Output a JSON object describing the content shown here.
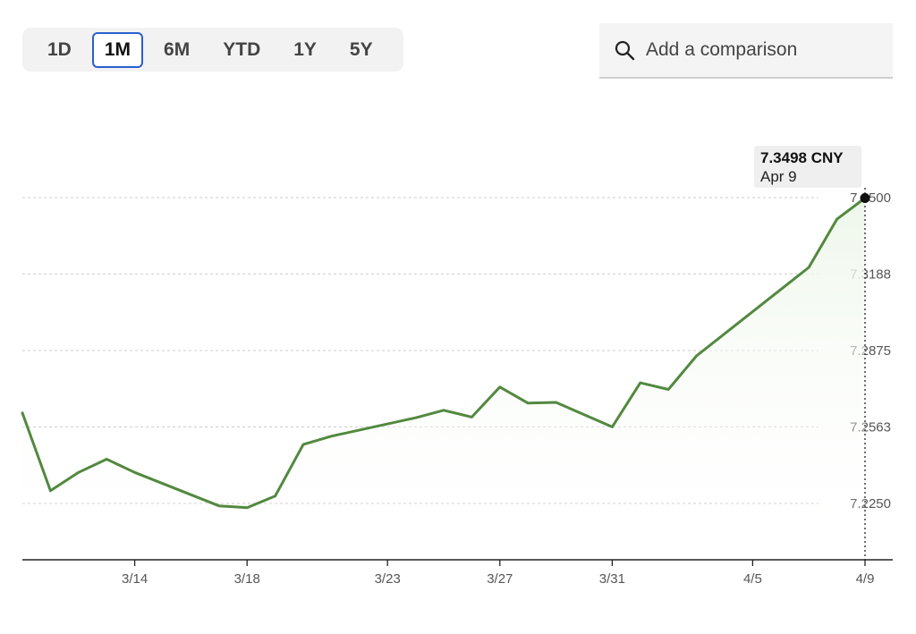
{
  "range_selector": {
    "options": [
      "1D",
      "1M",
      "6M",
      "YTD",
      "1Y",
      "5Y"
    ],
    "selected": "1M"
  },
  "comparison_search": {
    "placeholder": "Add a comparison",
    "icon": "search-icon"
  },
  "tooltip": {
    "value": "7.3498 CNY",
    "date": "Apr 9"
  },
  "colors": {
    "line": "#52893f",
    "area_fill": "#eef6ea",
    "accent": "#2b5fce",
    "grid": "#cccccc"
  },
  "chart_data": {
    "type": "area",
    "series": [
      {
        "points": [
          [
            "3/10",
            7.262
          ],
          [
            "3/11",
            7.2302
          ],
          [
            "3/12",
            7.2377
          ],
          [
            "3/13",
            7.2431
          ],
          [
            "3/14",
            7.2377
          ],
          [
            "3/17",
            7.224
          ],
          [
            "3/18",
            7.2233
          ],
          [
            "3/19",
            7.228
          ],
          [
            "3/20",
            7.2491
          ],
          [
            "3/21",
            7.2525
          ],
          [
            "3/24",
            7.26
          ],
          [
            "3/25",
            7.2631
          ],
          [
            "3/26",
            7.2603
          ],
          [
            "3/27",
            7.2726
          ],
          [
            "3/28",
            7.266
          ],
          [
            "3/29",
            7.2663
          ],
          [
            "3/31",
            7.2563
          ],
          [
            "4/1",
            7.2743
          ],
          [
            "4/2",
            7.2716
          ],
          [
            "4/3",
            7.2853
          ],
          [
            "4/7",
            7.3215
          ],
          [
            "4/8",
            7.3412
          ],
          [
            "4/9",
            7.3498
          ]
        ]
      }
    ],
    "x_ticks": [
      "3/14",
      "3/18",
      "3/23",
      "3/27",
      "3/31",
      "4/5",
      "4/9"
    ],
    "y_ticks": [
      "7.3500",
      "7.3188",
      "7.2875",
      "7.2563",
      "7.2250"
    ],
    "ylim": [
      7.225,
      7.35
    ],
    "grid": "horizontal dashed",
    "highlight": {
      "x": "4/9",
      "y": 7.3498
    }
  }
}
